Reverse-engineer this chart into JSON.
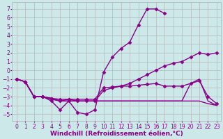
{
  "lines": [
    {
      "x": [
        0,
        1,
        2,
        3,
        4,
        5,
        6,
        7,
        8,
        9,
        10,
        11,
        12,
        13,
        14,
        15,
        16,
        17
      ],
      "y": [
        -1,
        -1.3,
        -3.0,
        -3.0,
        -3.5,
        -4.5,
        -3.5,
        -4.8,
        -5.0,
        -4.5,
        -0.2,
        1.5,
        2.5,
        3.2,
        5.2,
        7.0,
        7.0,
        6.5
      ],
      "color": "#990099",
      "marker": "D",
      "markersize": 2.5,
      "linewidth": 1.0
    },
    {
      "x": [
        0,
        1,
        2,
        3,
        4,
        5,
        6,
        7,
        8,
        9,
        10,
        11,
        12,
        13,
        14,
        15,
        16,
        17,
        18,
        19,
        20,
        21,
        22,
        23
      ],
      "y": [
        -1,
        -1.3,
        -3.0,
        -3.0,
        -3.2,
        -3.5,
        -3.3,
        -3.5,
        -3.5,
        -3.5,
        -2.3,
        -2.0,
        -1.8,
        -1.5,
        -1.0,
        -0.5,
        0.0,
        0.5,
        0.8,
        1.0,
        1.5,
        2.0,
        1.8,
        2.0
      ],
      "color": "#990099",
      "marker": "D",
      "markersize": 2.5,
      "linewidth": 1.0
    },
    {
      "x": [
        0,
        1,
        2,
        3,
        4,
        5,
        6,
        7,
        8,
        9,
        10,
        11,
        12,
        13,
        14,
        15,
        16,
        17,
        18,
        19,
        20,
        21,
        22,
        23
      ],
      "y": [
        -1,
        -1.3,
        -3.0,
        -3.0,
        -3.3,
        -3.5,
        -3.5,
        -3.5,
        -3.5,
        -3.5,
        -3.5,
        -3.5,
        -3.5,
        -3.5,
        -3.5,
        -3.5,
        -3.5,
        -3.5,
        -3.5,
        -3.5,
        -3.5,
        -3.5,
        -3.8,
        -4.0
      ],
      "color": "#990099",
      "marker": null,
      "markersize": 0,
      "linewidth": 1.0
    },
    {
      "x": [
        0,
        1,
        2,
        3,
        4,
        5,
        6,
        7,
        8,
        9,
        10,
        11,
        12,
        13,
        14,
        15,
        16,
        17,
        18,
        19,
        20,
        21,
        22,
        23
      ],
      "y": [
        -1,
        -1.3,
        -3.0,
        -3.0,
        -3.2,
        -3.5,
        -3.5,
        -3.5,
        -3.5,
        -3.5,
        -3.5,
        -3.5,
        -3.5,
        -3.5,
        -3.5,
        -3.5,
        -3.5,
        -3.5,
        -3.5,
        -3.5,
        -1.5,
        -1.0,
        -3.5,
        -4.0
      ],
      "color": "#990099",
      "marker": null,
      "markersize": 0,
      "linewidth": 1.0
    },
    {
      "x": [
        0,
        1,
        2,
        3,
        4,
        5,
        6,
        7,
        8,
        9,
        10,
        11,
        12,
        13,
        14,
        15,
        16,
        17,
        18,
        19,
        20,
        21,
        22,
        23
      ],
      "y": [
        -1,
        -1.3,
        -3.0,
        -3.0,
        -3.2,
        -3.3,
        -3.3,
        -3.3,
        -3.3,
        -3.3,
        -2.0,
        -1.9,
        -1.8,
        -1.8,
        -1.7,
        -1.6,
        -1.5,
        -1.8,
        -1.8,
        -1.8,
        -1.5,
        -1.2,
        -3.0,
        -3.8
      ],
      "color": "#990099",
      "marker": "D",
      "markersize": 2.5,
      "linewidth": 1.0
    }
  ],
  "xlim": [
    -0.5,
    23.5
  ],
  "ylim": [
    -5.8,
    7.8
  ],
  "yticks": [
    -5,
    -4,
    -3,
    -2,
    -1,
    0,
    1,
    2,
    3,
    4,
    5,
    6,
    7
  ],
  "xticks": [
    0,
    1,
    2,
    3,
    4,
    5,
    6,
    7,
    8,
    9,
    10,
    11,
    12,
    13,
    14,
    15,
    16,
    17,
    18,
    19,
    20,
    21,
    22,
    23
  ],
  "xlabel": "Windchill (Refroidissement éolien,°C)",
  "background_color": "#cce8e8",
  "grid_color": "#b0b0b0",
  "line_color": "#880088",
  "tick_color": "#880088",
  "tick_fontsize": 5.5,
  "label_fontsize": 6.5
}
